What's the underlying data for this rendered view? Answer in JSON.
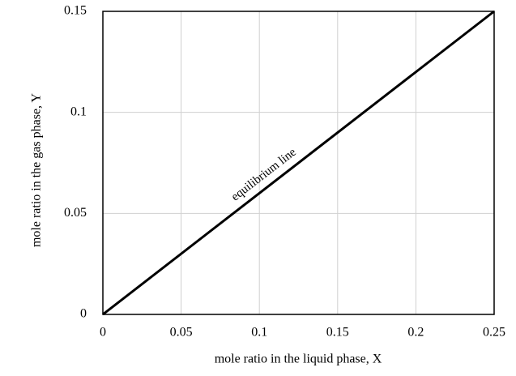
{
  "chart_data": {
    "type": "line",
    "x_label": "mole ratio in the liquid phase, X",
    "y_label": "mole ratio in the gas phase, Y",
    "annotation": "equilibrium line",
    "x": [
      0,
      0.25
    ],
    "series": [
      {
        "name": "equilibrium line",
        "color": "#000000",
        "values": [
          0,
          0.15
        ]
      }
    ],
    "xlim": [
      0,
      0.25
    ],
    "xticks": [
      0,
      0.05,
      0.1,
      0.15,
      0.2,
      0.25
    ],
    "ylim": [
      0,
      0.15
    ],
    "yticks": [
      0,
      0.05,
      0.1,
      0.15
    ],
    "grid": true
  }
}
